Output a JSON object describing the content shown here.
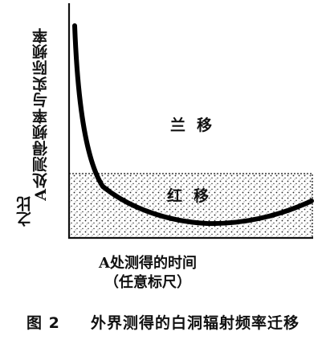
{
  "diagram": {
    "y_axis_label": "A处测得频率与实际频率",
    "y_axis_label_cont": "之比",
    "x_axis_label_line1": "A处测得的时间",
    "x_axis_label_line2": "（任意标尺）",
    "region_blueshift": "兰移",
    "region_redshift": "红移"
  },
  "caption": {
    "number": "图 2",
    "text": "外界测得的白洞辐射频率迁移"
  }
}
